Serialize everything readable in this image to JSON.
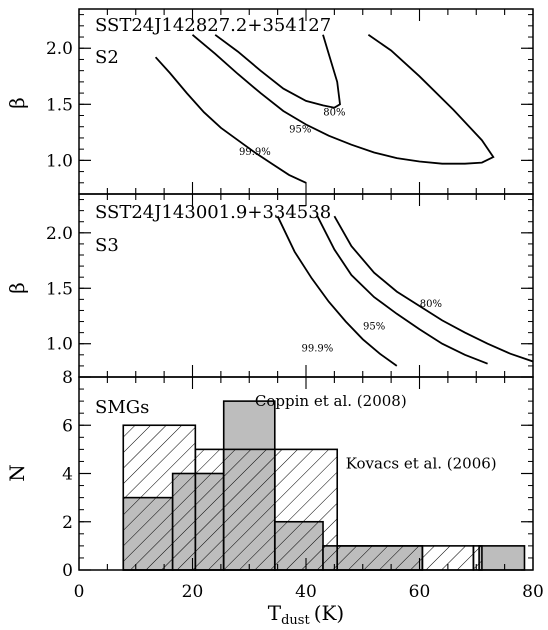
{
  "chart_data": [
    {
      "type": "contour",
      "panel_title": "SST24J142827.2+354127",
      "panel_tag": "S2",
      "ylabel": "β",
      "ylim": [
        0.7,
        2.35
      ],
      "xlim": [
        0,
        80
      ],
      "y_ticks": [
        "1.0",
        "1.5",
        "2.0"
      ],
      "contours": [
        {
          "name": "80%",
          "label_at": [
            45,
            1.4
          ],
          "points": [
            [
              24,
              2.12
            ],
            [
              28,
              1.97
            ],
            [
              32,
              1.8
            ],
            [
              36,
              1.64
            ],
            [
              40,
              1.53
            ],
            [
              43,
              1.49
            ],
            [
              45,
              1.47
            ],
            [
              46,
              1.5
            ],
            [
              45.5,
              1.7
            ],
            [
              44,
              1.95
            ],
            [
              43,
              2.12
            ]
          ]
        },
        {
          "name": "95%",
          "label_at": [
            39,
            1.25
          ],
          "points": [
            [
              20,
              2.12
            ],
            [
              24,
              1.95
            ],
            [
              28,
              1.77
            ],
            [
              32,
              1.6
            ],
            [
              36,
              1.44
            ],
            [
              40,
              1.32
            ],
            [
              44,
              1.22
            ],
            [
              48,
              1.14
            ],
            [
              52,
              1.07
            ],
            [
              56,
              1.02
            ],
            [
              60,
              0.99
            ],
            [
              64,
              0.97
            ],
            [
              68,
              0.97
            ],
            [
              71,
              0.98
            ],
            [
              73,
              1.03
            ],
            [
              71,
              1.18
            ],
            [
              66,
              1.45
            ],
            [
              60,
              1.75
            ],
            [
              55,
              1.98
            ],
            [
              51,
              2.12
            ]
          ]
        },
        {
          "name": "99.9%",
          "label_at": [
            31,
            1.05
          ],
          "points": [
            [
              13.5,
              1.92
            ],
            [
              16,
              1.78
            ],
            [
              19,
              1.6
            ],
            [
              22,
              1.43
            ],
            [
              25,
              1.29
            ],
            [
              28,
              1.18
            ],
            [
              31,
              1.07
            ],
            [
              34,
              0.97
            ],
            [
              37,
              0.87
            ],
            [
              40,
              0.8
            ]
          ]
        }
      ]
    },
    {
      "type": "contour",
      "panel_title": "SST24J143001.9+334538",
      "panel_tag": "S3",
      "ylabel": "β",
      "ylim": [
        0.7,
        2.35
      ],
      "xlim": [
        0,
        80
      ],
      "y_ticks": [
        "1.0",
        "1.5",
        "2.0"
      ],
      "contours": [
        {
          "name": "80%",
          "label_at": [
            62,
            1.33
          ],
          "points": [
            [
              45,
              2.15
            ],
            [
              48,
              1.88
            ],
            [
              52,
              1.64
            ],
            [
              56,
              1.47
            ],
            [
              60,
              1.34
            ],
            [
              64,
              1.21
            ],
            [
              68,
              1.1
            ],
            [
              72,
              1.0
            ],
            [
              76,
              0.91
            ],
            [
              80,
              0.84
            ]
          ]
        },
        {
          "name": "95%",
          "label_at": [
            52,
            1.13
          ],
          "points": [
            [
              42,
              2.15
            ],
            [
              45,
              1.85
            ],
            [
              48,
              1.62
            ],
            [
              52,
              1.42
            ],
            [
              56,
              1.27
            ],
            [
              60,
              1.13
            ],
            [
              64,
              1.0
            ],
            [
              68,
              0.9
            ],
            [
              72,
              0.82
            ]
          ]
        },
        {
          "name": "99.9%",
          "label_at": [
            42,
            0.93
          ],
          "points": [
            [
              35,
              2.15
            ],
            [
              38,
              1.83
            ],
            [
              41,
              1.59
            ],
            [
              44,
              1.38
            ],
            [
              47,
              1.2
            ],
            [
              50,
              1.04
            ],
            [
              53,
              0.91
            ],
            [
              56,
              0.8
            ]
          ]
        }
      ]
    },
    {
      "type": "histogram",
      "panel_tag": "SMGs",
      "xlabel_main": "T",
      "xlabel_sub": "dust",
      "xlabel_unit": "(K)",
      "ylabel": "N",
      "xlim": [
        0,
        80
      ],
      "ylim": [
        0,
        8
      ],
      "x_ticks": [
        "0",
        "20",
        "40",
        "60",
        "80"
      ],
      "y_ticks": [
        "0",
        "2",
        "4",
        "6",
        "8"
      ],
      "series": [
        {
          "name": "Coppin et al. (2008)",
          "style": "solid-gray",
          "label_at": [
            31,
            6.8
          ],
          "bins": [
            [
              7.8,
              16.5,
              3
            ],
            [
              16.5,
              25.5,
              4
            ],
            [
              25.5,
              34.5,
              7
            ],
            [
              34.5,
              43,
              2
            ],
            [
              43,
              60.5,
              1
            ],
            [
              60.5,
              70.5,
              0
            ],
            [
              70.5,
              78.5,
              1
            ]
          ]
        },
        {
          "name": "Kovacs et al. (2006)",
          "style": "hatched",
          "label_at": [
            47,
            4.2
          ],
          "bins": [
            [
              7.8,
              20.5,
              6
            ],
            [
              20.5,
              25.5,
              5
            ],
            [
              25.5,
              34.5,
              5
            ],
            [
              34.5,
              45.5,
              5
            ],
            [
              45.5,
              60.5,
              1
            ],
            [
              60.5,
              69.5,
              1
            ],
            [
              69.5,
              71,
              1
            ]
          ]
        }
      ]
    }
  ],
  "colors": {
    "fill_gray": "#bdbdbd",
    "line": "#000000"
  }
}
